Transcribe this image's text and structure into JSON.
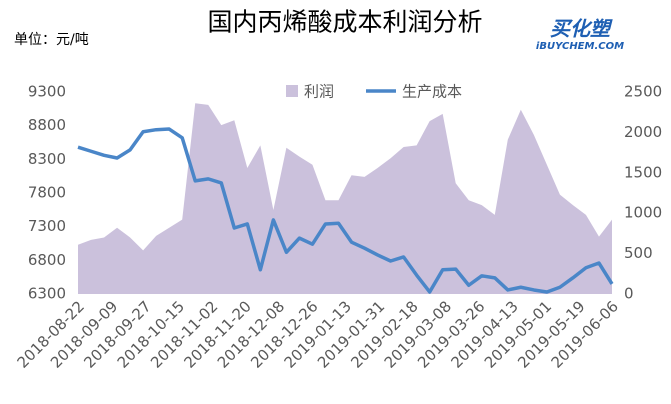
{
  "chart_data": {
    "type": "line-area",
    "title": "国内丙烯酸成本利润分析",
    "y_unit": "单位：元/吨",
    "logo": {
      "name": "买化塑",
      "url": "iBUYCHEM.COM"
    },
    "xticks": [
      "2018-08-22",
      "2018-09-09",
      "2018-09-27",
      "2018-10-15",
      "2018-11-02",
      "2018-11-20",
      "2018-12-08",
      "2018-12-26",
      "2019-01-13",
      "2019-01-31",
      "2019-02-18",
      "2019-03-08",
      "2019-03-26",
      "2019-04-13",
      "2019-05-01",
      "2019-05-19",
      "2019-06-06"
    ],
    "ylim": [
      6300,
      9300
    ],
    "yticks": [
      6300,
      6800,
      7300,
      7800,
      8300,
      8800,
      9300
    ],
    "y2lim": [
      0,
      2500
    ],
    "y2ticks": [
      0,
      500,
      1000,
      1500,
      2000,
      2500
    ],
    "legend": "top",
    "series": [
      {
        "name": "利润",
        "type": "area",
        "axis": "y2",
        "color": "#cbc1dc",
        "values": [
          610,
          670,
          700,
          820,
          700,
          540,
          720,
          820,
          920,
          2360,
          2340,
          2090,
          2150,
          1560,
          1840,
          1040,
          1810,
          1700,
          1600,
          1160,
          1160,
          1470,
          1450,
          1560,
          1680,
          1820,
          1840,
          2140,
          2230,
          1370,
          1160,
          1100,
          980,
          1910,
          2280,
          1970,
          1600,
          1230,
          1100,
          980,
          710,
          920
        ]
      },
      {
        "name": "生产成本",
        "type": "line",
        "axis": "y",
        "color": "#4a86c8",
        "values": [
          8480,
          8420,
          8360,
          8320,
          8440,
          8710,
          8740,
          8750,
          8620,
          7980,
          8010,
          7950,
          7280,
          7340,
          6660,
          7400,
          6920,
          7130,
          7040,
          7340,
          7350,
          7070,
          6980,
          6880,
          6790,
          6850,
          6580,
          6330,
          6660,
          6670,
          6430,
          6570,
          6540,
          6360,
          6400,
          6360,
          6330,
          6400,
          6540,
          6690,
          6760,
          6450
        ]
      }
    ]
  }
}
